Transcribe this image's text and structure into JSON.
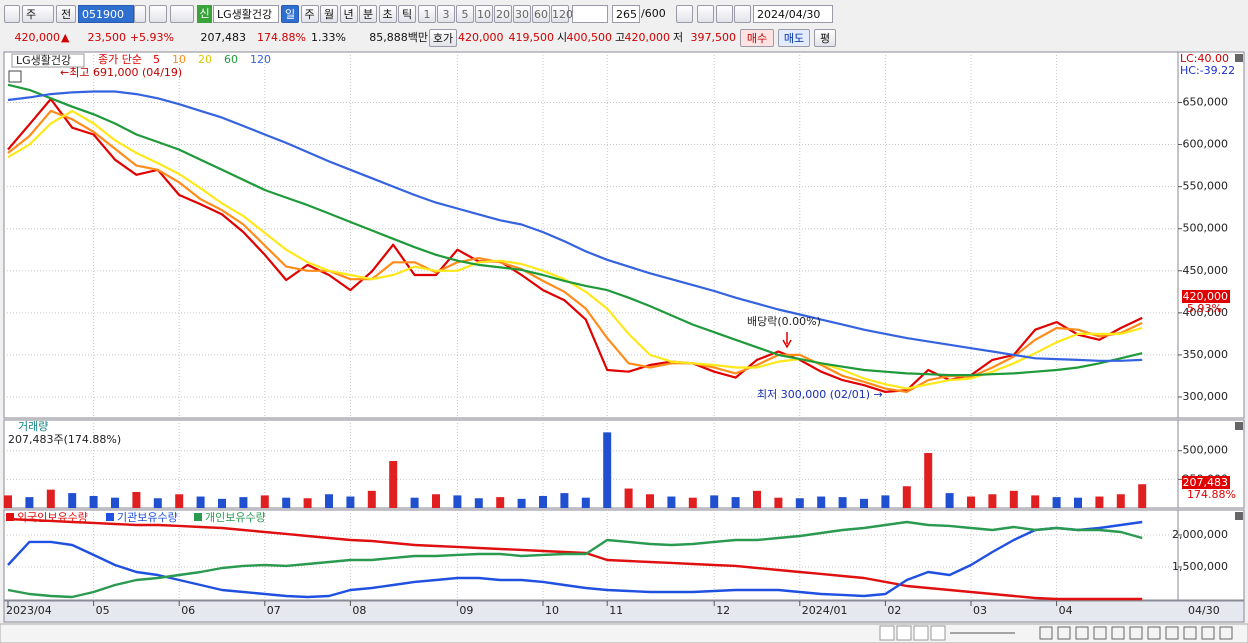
{
  "toolbar": {
    "period": "주",
    "prev": "전",
    "code": "051900",
    "new_badge": "신",
    "name": "LG생활건강",
    "intervals": [
      "일",
      "주",
      "월",
      "년",
      "분",
      "초",
      "틱"
    ],
    "counts": [
      "1",
      "3",
      "5",
      "10",
      "20",
      "30",
      "60",
      "120"
    ],
    "range": "265",
    "range_max": "/600",
    "date": "2024/04/30"
  },
  "quote": {
    "price": "420,000",
    "arrow": "▲",
    "change": "23,500",
    "change_pct": "+5.93%",
    "volume": "207,483",
    "volume_ratio": "174.88%",
    "turnover": "1.33%",
    "amount": "85,888백만",
    "ask_label": "호가",
    "ask": "420,000",
    "bid": "419,500",
    "open_label": "시",
    "open": "400,500",
    "high_label": "고",
    "high": "420,000",
    "low_label": "저",
    "low": "397,500",
    "buy": "매수",
    "sell": "매도",
    "avg": "평"
  },
  "chart_data": [
    {
      "type": "line",
      "title": "LG생활건강",
      "legend_label": "종가 단순",
      "series": [
        {
          "name": "5",
          "color": "#e00000",
          "values": [
            594000,
            624000,
            654000,
            620000,
            612000,
            582000,
            564000,
            570000,
            540000,
            529000,
            517000,
            496000,
            469000,
            439000,
            457000,
            445000,
            427000,
            449000,
            481000,
            445000,
            445000,
            475000,
            461000,
            461000,
            445000,
            427000,
            415000,
            392000,
            332000,
            330000,
            338000,
            342000,
            340000,
            330000,
            323000,
            344000,
            354000,
            344000,
            330000,
            320000,
            314000,
            306000,
            308000,
            332000,
            320000,
            326000,
            344000,
            350000,
            380000,
            389000,
            374000,
            368000,
            382000,
            394000
          ]
        },
        {
          "name": "10",
          "color": "#ff8c1a",
          "values": [
            590000,
            610000,
            640000,
            630000,
            615000,
            595000,
            575000,
            570000,
            555000,
            535000,
            522000,
            505000,
            480000,
            455000,
            450000,
            450000,
            440000,
            440000,
            460000,
            460000,
            448000,
            460000,
            465000,
            460000,
            452000,
            438000,
            425000,
            405000,
            370000,
            340000,
            335000,
            340000,
            340000,
            335000,
            328000,
            338000,
            350000,
            350000,
            338000,
            325000,
            318000,
            310000,
            306000,
            320000,
            325000,
            324000,
            335000,
            348000,
            368000,
            382000,
            380000,
            372000,
            376000,
            388000
          ]
        },
        {
          "name": "20",
          "color": "#ffe81a",
          "values": [
            585000,
            600000,
            625000,
            640000,
            625000,
            605000,
            590000,
            578000,
            565000,
            548000,
            530000,
            515000,
            495000,
            475000,
            460000,
            450000,
            445000,
            440000,
            445000,
            455000,
            450000,
            450000,
            460000,
            462000,
            458000,
            450000,
            440000,
            425000,
            405000,
            375000,
            350000,
            342000,
            340000,
            338000,
            335000,
            335000,
            342000,
            345000,
            340000,
            332000,
            322000,
            315000,
            310000,
            315000,
            320000,
            322000,
            330000,
            340000,
            352000,
            365000,
            375000,
            375000,
            375000,
            382000
          ]
        },
        {
          "name": "60",
          "color": "#1f9a3a",
          "values": [
            671000,
            665000,
            655000,
            645000,
            636000,
            625000,
            612000,
            603000,
            594000,
            582000,
            570000,
            558000,
            546000,
            537000,
            528000,
            518000,
            508000,
            498000,
            488000,
            478000,
            469000,
            462000,
            457000,
            454000,
            451000,
            445000,
            438000,
            432000,
            427000,
            418000,
            408000,
            397000,
            386000,
            377000,
            368000,
            359000,
            350000,
            345000,
            340000,
            336000,
            332000,
            330000,
            328000,
            327000,
            326000,
            326000,
            327000,
            328000,
            330000,
            332000,
            335000,
            340000,
            346000,
            352000
          ]
        },
        {
          "name": "120",
          "color": "#3563e0",
          "values": [
            653000,
            656000,
            660000,
            662000,
            663000,
            663000,
            660000,
            655000,
            648000,
            640000,
            632000,
            622000,
            612000,
            602000,
            591000,
            580000,
            570000,
            560000,
            550000,
            540000,
            531000,
            524000,
            517000,
            510000,
            505000,
            496000,
            485000,
            473000,
            463000,
            455000,
            447000,
            440000,
            433000,
            426000,
            418000,
            411000,
            404000,
            398000,
            392000,
            386000,
            380000,
            375000,
            370000,
            366000,
            362000,
            358000,
            354000,
            350000,
            346000,
            345000,
            344000,
            343000,
            343000,
            344000
          ]
        }
      ],
      "ylim": [
        275000,
        710000
      ],
      "yticks": [
        {
          "value": 300000,
          "label": "300,000"
        },
        {
          "value": 350000,
          "label": "350,000"
        },
        {
          "value": 400000,
          "label": "400,000"
        },
        {
          "value": 450000,
          "label": "450,000"
        },
        {
          "value": 500000,
          "label": "500,000"
        },
        {
          "value": 550000,
          "label": "550,000"
        },
        {
          "value": 600000,
          "label": "600,000"
        },
        {
          "value": 650000,
          "label": "650,000"
        }
      ],
      "grid": true,
      "annotations": {
        "high": "←최고 691,000 (04/19)",
        "low": "최저 300,000 (02/01) →",
        "dividend": "배당락(0.00%)",
        "lc": "LC:40.00",
        "hc": "HC:-39.22",
        "last_price": "420,000",
        "last_change": "5.93%"
      }
    },
    {
      "type": "bar",
      "title": "거래량",
      "subtitle": "207,483주(174.88%)",
      "values": [
        110000,
        95000,
        160000,
        130000,
        105000,
        90000,
        140000,
        85000,
        120000,
        100000,
        80000,
        95000,
        110000,
        90000,
        85000,
        120000,
        100000,
        150000,
        410000,
        90000,
        120000,
        110000,
        85000,
        95000,
        80000,
        105000,
        130000,
        90000,
        660000,
        170000,
        120000,
        100000,
        90000,
        110000,
        95000,
        150000,
        90000,
        85000,
        100000,
        95000,
        80000,
        110000,
        190000,
        480000,
        130000,
        100000,
        120000,
        150000,
        110000,
        95000,
        90000,
        100000,
        120000,
        207483
      ],
      "colors": [
        "#e02020",
        "#2050d0",
        "#e02020",
        "#2050d0",
        "#2050d0",
        "#2050d0",
        "#e02020",
        "#2050d0",
        "#e02020",
        "#2050d0",
        "#2050d0",
        "#2050d0",
        "#e02020",
        "#2050d0",
        "#e02020",
        "#2050d0",
        "#2050d0",
        "#e02020",
        "#e02020",
        "#2050d0",
        "#e02020",
        "#2050d0",
        "#2050d0",
        "#e02020",
        "#2050d0",
        "#2050d0",
        "#2050d0",
        "#2050d0",
        "#2050d0",
        "#e02020",
        "#e02020",
        "#2050d0",
        "#e02020",
        "#2050d0",
        "#2050d0",
        "#e02020",
        "#e02020",
        "#2050d0",
        "#2050d0",
        "#2050d0",
        "#2050d0",
        "#2050d0",
        "#e02020",
        "#e02020",
        "#2050d0",
        "#e02020",
        "#e02020",
        "#e02020",
        "#e02020",
        "#2050d0",
        "#2050d0",
        "#e02020",
        "#e02020",
        "#e02020"
      ],
      "ylim": [
        0,
        768000
      ],
      "yticks": [
        {
          "value": 250000,
          "label": "250,000"
        },
        {
          "value": 500000,
          "label": "500,000"
        }
      ],
      "grid": true,
      "last_value_label": "207,483",
      "last_ratio": "174.88%"
    },
    {
      "type": "line",
      "categories": [
        "2023/04",
        null,
        null,
        null,
        "05",
        null,
        null,
        null,
        "06",
        null,
        null,
        null,
        "07",
        null,
        null,
        null,
        "08",
        null,
        null,
        null,
        null,
        "09",
        null,
        null,
        null,
        "10",
        null,
        null,
        "11",
        null,
        null,
        null,
        null,
        "12",
        null,
        null,
        null,
        "2024/01",
        null,
        null,
        null,
        "02",
        null,
        null,
        null,
        "03",
        null,
        null,
        null,
        "04",
        null,
        null,
        null,
        null
      ],
      "series": [
        {
          "name": "외국인보유수량",
          "color": "#e01010",
          "values": [
            2250000,
            2234000,
            2219000,
            2203000,
            2188000,
            2172000,
            2156000,
            2156000,
            2141000,
            2125000,
            2109000,
            2078000,
            2047000,
            2016000,
            1984000,
            1953000,
            1922000,
            1906000,
            1875000,
            1844000,
            1828000,
            1813000,
            1797000,
            1781000,
            1766000,
            1750000,
            1734000,
            1719000,
            1609000,
            1594000,
            1578000,
            1563000,
            1547000,
            1531000,
            1516000,
            1484000,
            1453000,
            1422000,
            1391000,
            1359000,
            1328000,
            1266000,
            1203000,
            1172000,
            1141000,
            1109000,
            1078000,
            1047000,
            1016000,
            1000000,
            1000000,
            1000000,
            1000000,
            1000000
          ]
        },
        {
          "name": "기관보유수량",
          "color": "#2050e0",
          "values": [
            1531000,
            1891000,
            1891000,
            1844000,
            1688000,
            1531000,
            1422000,
            1375000,
            1297000,
            1219000,
            1141000,
            1109000,
            1078000,
            1047000,
            1031000,
            1047000,
            1141000,
            1172000,
            1219000,
            1266000,
            1297000,
            1328000,
            1328000,
            1297000,
            1297000,
            1266000,
            1219000,
            1172000,
            1141000,
            1125000,
            1109000,
            1109000,
            1109000,
            1125000,
            1141000,
            1141000,
            1141000,
            1109000,
            1078000,
            1063000,
            1047000,
            1078000,
            1297000,
            1422000,
            1375000,
            1531000,
            1734000,
            1922000,
            2078000,
            2109000,
            2078000,
            2109000,
            2156000,
            2203000
          ]
        },
        {
          "name": "개인보유수량",
          "color": "#2a9a50",
          "values": [
            1141000,
            1078000,
            1047000,
            1031000,
            1109000,
            1219000,
            1297000,
            1328000,
            1375000,
            1422000,
            1484000,
            1516000,
            1531000,
            1516000,
            1547000,
            1578000,
            1609000,
            1609000,
            1641000,
            1672000,
            1672000,
            1688000,
            1703000,
            1703000,
            1672000,
            1688000,
            1703000,
            1703000,
            1922000,
            1891000,
            1859000,
            1844000,
            1859000,
            1891000,
            1922000,
            1922000,
            1953000,
            1984000,
            2031000,
            2078000,
            2109000,
            2156000,
            2203000,
            2156000,
            2141000,
            2109000,
            2078000,
            2125000,
            2078000,
            2109000,
            2078000,
            2078000,
            2047000,
            1953000
          ]
        }
      ],
      "ylim": [
        984000,
        2390000
      ],
      "yticks": [
        {
          "value": 1500000,
          "label": "1,500,000"
        },
        {
          "value": 2000000,
          "label": "2,000,000"
        }
      ],
      "grid": true,
      "cursor_label": "04/30"
    }
  ]
}
